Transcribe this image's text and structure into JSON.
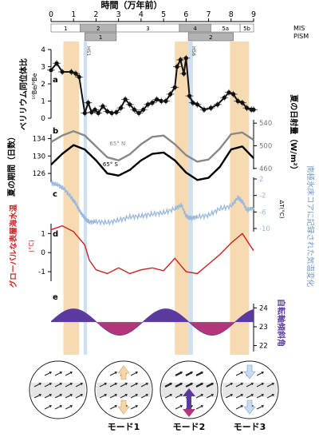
{
  "chart_data": {
    "type": "line",
    "xaxis": {
      "title": "時間（万年前）",
      "range": [
        0,
        9
      ],
      "ticks": [
        "0",
        "1",
        "2",
        "3",
        "4",
        "5",
        "6",
        "7",
        "8",
        "9"
      ]
    },
    "stages": {
      "mis_label": "MIS",
      "pism_label": "PISM",
      "mis": [
        {
          "label": "1",
          "from": 0,
          "to": 1.3,
          "shaded": false
        },
        {
          "label": "2",
          "from": 1.3,
          "to": 2.9,
          "shaded": true
        },
        {
          "label": "3",
          "from": 2.9,
          "to": 5.7,
          "shaded": false
        },
        {
          "label": "4",
          "from": 5.7,
          "to": 7.1,
          "shaded": true
        },
        {
          "label": "5a",
          "from": 7.1,
          "to": 8.4,
          "shaded": false
        },
        {
          "label": "5b",
          "from": 8.4,
          "to": 9.0,
          "shaded": false
        }
      ],
      "pism": [
        {
          "label": "1",
          "from": 1.5,
          "to": 2.9
        },
        {
          "label": "2",
          "from": 6.1,
          "to": 8.1
        }
      ]
    },
    "bands": [
      {
        "from": 0.55,
        "to": 1.25,
        "kind": "warm"
      },
      {
        "from": 5.5,
        "to": 6.1,
        "kind": "warm"
      },
      {
        "from": 7.95,
        "to": 8.8,
        "kind": "warm"
      },
      {
        "from": 1.45,
        "to": 1.6,
        "kind": "cold",
        "label": "HS1"
      },
      {
        "from": 6.1,
        "to": 6.3,
        "kind": "cold",
        "label": "HS6"
      }
    ],
    "panels": {
      "a": {
        "letter": "a",
        "ylabel": "ベリリウム同位体比",
        "yunit": "¹⁰Be/⁹Be",
        "ticks": [
          "4",
          "3",
          "2",
          "1",
          "0"
        ],
        "ylim": [
          0,
          4
        ],
        "series": [
          {
            "name": "",
            "color": "#111111",
            "x": [
              0,
              0.25,
              0.5,
              0.9,
              1.1,
              1.25,
              1.5,
              1.65,
              1.8,
              1.95,
              2.1,
              2.3,
              2.5,
              2.7,
              2.9,
              3.1,
              3.3,
              3.5,
              3.7,
              3.9,
              4.1,
              4.3,
              4.5,
              4.7,
              4.9,
              5.1,
              5.3,
              5.5,
              5.6,
              5.75,
              5.9,
              6.0,
              6.15,
              6.3,
              6.5,
              6.8,
              7.1,
              7.4,
              7.7,
              7.9,
              8.1,
              8.3,
              8.5,
              8.7,
              8.9,
              9.0
            ],
            "y": [
              2.8,
              3.2,
              2.7,
              2.7,
              2.6,
              2.4,
              0.3,
              0.9,
              0.35,
              0.5,
              0.3,
              0.7,
              0.4,
              0.3,
              0.35,
              0.6,
              1.1,
              0.8,
              0.5,
              0.3,
              0.5,
              0.8,
              0.9,
              1.1,
              1.0,
              1.0,
              1.4,
              1.8,
              3.0,
              3.4,
              2.6,
              3.5,
              1.3,
              0.9,
              0.8,
              0.5,
              0.6,
              0.8,
              1.2,
              1.5,
              1.4,
              1.0,
              0.9,
              0.6,
              0.5,
              0.5
            ]
          }
        ]
      },
      "b": {
        "letter": "b",
        "ylabel_left": "夏の期間（日数）",
        "ticks_left": [
          "134",
          "130",
          "126"
        ],
        "ylabel_right": "夏の日射量（W/m²）",
        "ticks_right": [
          "540",
          "500",
          "460"
        ],
        "series": [
          {
            "name": "65° N",
            "color": "#888888",
            "x": [
              0,
              0.5,
              1.0,
              1.5,
              2.0,
              2.5,
              3.0,
              3.5,
              4.0,
              4.5,
              5.0,
              5.5,
              6.0,
              6.5,
              7.0,
              7.5,
              8.0,
              8.5,
              9.0
            ],
            "y": [
              131,
              132.5,
              133.5,
              132.5,
              130,
              127.5,
              126.8,
              128.2,
              130.5,
              132.2,
              132.5,
              130.5,
              128,
              126.5,
              127,
              129.5,
              132.8,
              133.2,
              131.5
            ]
          },
          {
            "name": "65° S",
            "color": "#000000",
            "x": [
              0,
              0.5,
              1.0,
              1.5,
              2.0,
              2.5,
              3.0,
              3.5,
              4.0,
              4.5,
              5.0,
              5.5,
              6.0,
              6.5,
              7.0,
              7.5,
              8.0,
              8.5,
              9.0
            ],
            "y": [
              128,
              130.5,
              132.5,
              131.5,
              129,
              126,
              125.5,
              126.8,
              129,
              130.5,
              130.8,
              129,
              126.2,
              124.5,
              125,
              127.5,
              131.5,
              132.2,
              129.5
            ]
          }
        ]
      },
      "c": {
        "letter": "c",
        "ylabel_right": "南極氷床コアに記録された気温変化",
        "yunit_right": "ΔT(°C)",
        "ticks_right": [
          "2",
          "-2",
          "-6",
          "-10"
        ],
        "ylim": [
          -10,
          2
        ],
        "series": [
          {
            "name": "",
            "color": "#9ab8dc",
            "x": [
              0,
              0.3,
              0.6,
              0.9,
              1.1,
              1.3,
              1.5,
              1.7,
              2.0,
              2.5,
              3.0,
              3.5,
              4.0,
              4.5,
              5.0,
              5.5,
              5.8,
              6.0,
              6.2,
              6.5,
              7.0,
              7.5,
              8.0,
              8.3,
              8.5,
              8.7,
              9.0
            ],
            "y": [
              1.0,
              0.6,
              -0.5,
              -2.5,
              -4,
              -6,
              -7.5,
              -8.5,
              -8.3,
              -8.6,
              -8,
              -7.2,
              -7,
              -6.5,
              -6.2,
              -5.2,
              -4.3,
              -7,
              -7.5,
              -7.2,
              -6.8,
              -5.2,
              -4.6,
              -2.5,
              -3.5,
              -5.5,
              -5.0
            ]
          }
        ]
      },
      "d": {
        "letter": "d",
        "ylabel_left": "グローバルな表層海水温",
        "yunit_left": "(°C)",
        "ticks_left": [
          "1",
          "0",
          "-1"
        ],
        "series": [
          {
            "name": "",
            "color": "#cc2222",
            "x": [
              0,
              0.5,
              1.0,
              1.5,
              1.7,
              2.0,
              2.5,
              3.0,
              3.5,
              4.0,
              4.5,
              5.0,
              5.5,
              6.0,
              6.5,
              7.0,
              7.5,
              8.0,
              8.5,
              9.0
            ],
            "y": [
              1.2,
              1.4,
              1.1,
              0.4,
              -0.4,
              -0.9,
              -1.1,
              -0.8,
              -1.1,
              -0.9,
              -0.8,
              -0.95,
              -0.3,
              -1.0,
              -1.1,
              -0.6,
              -0.1,
              0.5,
              1.0,
              0.1
            ]
          }
        ]
      },
      "e": {
        "letter": "e",
        "ylabel_right": "自転軸傾斜角",
        "ticks_right": [
          "24",
          "23",
          "22"
        ],
        "series": [
          {
            "name": "",
            "color": "#5b3aa0",
            "mean": 23.25,
            "amplitude": 0.7,
            "period_10ka": 4.1,
            "peak_at": 1.0
          }
        ]
      }
    },
    "modes": [
      {
        "label": "",
        "arrows": "none"
      },
      {
        "label": "モード1",
        "arrows": "opposite"
      },
      {
        "label": "モード2",
        "arrows": "purple"
      },
      {
        "label": "モード3",
        "arrows": "down"
      }
    ],
    "colors": {
      "warm_band": "#f5d6a8",
      "cold_band": "#c8dcef",
      "stage_shade": "#b3b3b3",
      "purple": "#5b3aa0",
      "magenta": "#b5357a",
      "red_label": "#cc2222",
      "blue_label": "#6e96c6"
    }
  }
}
